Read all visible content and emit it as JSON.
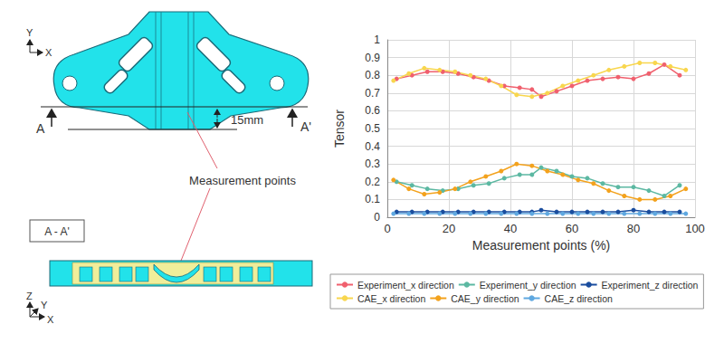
{
  "figure": {
    "axes_top": {
      "y": "Y",
      "x": "X"
    },
    "section_marks": {
      "left": "A",
      "right": "A'"
    },
    "dimension": "15mm",
    "callout": "Measurement points",
    "section_title": "A - A'",
    "axes_bottom": {
      "z": "Z",
      "y": "Y",
      "x": "X"
    }
  },
  "chart_data": {
    "type": "line",
    "xlabel": "Measurement points (%)",
    "ylabel": "Tensor",
    "xlim": [
      0,
      100
    ],
    "xticks": [
      0,
      20,
      40,
      60,
      80,
      100
    ],
    "ylim": [
      0,
      1
    ],
    "yticks": [
      0,
      0.1,
      0.2,
      0.3,
      0.4,
      0.5,
      0.6,
      0.7,
      0.8,
      0.9,
      1
    ],
    "grid": true,
    "legend": "bottom",
    "marker": "circle",
    "series": [
      {
        "name": "Experiment_x direction",
        "color": "#f0606e",
        "x": [
          3,
          8,
          13,
          18,
          23,
          28,
          33,
          38,
          43,
          47,
          50,
          55,
          60,
          65,
          70,
          75,
          80,
          85,
          90,
          95
        ],
        "values": [
          0.78,
          0.8,
          0.82,
          0.82,
          0.81,
          0.79,
          0.77,
          0.74,
          0.73,
          0.72,
          0.68,
          0.71,
          0.74,
          0.77,
          0.78,
          0.79,
          0.78,
          0.81,
          0.86,
          0.8
        ]
      },
      {
        "name": "Experiment_y direction",
        "color": "#5cb8a2",
        "x": [
          3,
          8,
          13,
          18,
          23,
          28,
          33,
          38,
          43,
          47,
          50,
          55,
          60,
          65,
          70,
          75,
          80,
          85,
          90,
          95
        ],
        "values": [
          0.2,
          0.18,
          0.16,
          0.15,
          0.16,
          0.18,
          0.19,
          0.22,
          0.24,
          0.24,
          0.28,
          0.26,
          0.23,
          0.22,
          0.19,
          0.17,
          0.17,
          0.15,
          0.12,
          0.18
        ]
      },
      {
        "name": "Experiment_z direction",
        "color": "#1a4d9e",
        "x": [
          3,
          8,
          13,
          18,
          23,
          28,
          33,
          38,
          43,
          47,
          50,
          55,
          60,
          65,
          70,
          75,
          80,
          85,
          90,
          95
        ],
        "values": [
          0.03,
          0.03,
          0.03,
          0.03,
          0.03,
          0.03,
          0.03,
          0.03,
          0.03,
          0.03,
          0.04,
          0.03,
          0.03,
          0.03,
          0.03,
          0.03,
          0.04,
          0.03,
          0.03,
          0.03
        ]
      },
      {
        "name": "CAE_x direction",
        "color": "#f8d64e",
        "x": [
          2,
          7,
          12,
          17,
          22,
          27,
          32,
          37,
          42,
          47,
          52,
          57,
          62,
          67,
          72,
          77,
          82,
          87,
          92,
          97
        ],
        "values": [
          0.77,
          0.81,
          0.84,
          0.83,
          0.82,
          0.8,
          0.78,
          0.74,
          0.69,
          0.68,
          0.7,
          0.74,
          0.77,
          0.8,
          0.83,
          0.85,
          0.87,
          0.87,
          0.85,
          0.83
        ]
      },
      {
        "name": "CAE_y direction",
        "color": "#f3a21d",
        "x": [
          2,
          7,
          12,
          17,
          22,
          27,
          32,
          37,
          42,
          47,
          52,
          57,
          62,
          67,
          72,
          77,
          82,
          87,
          92,
          97
        ],
        "values": [
          0.21,
          0.16,
          0.13,
          0.14,
          0.16,
          0.2,
          0.23,
          0.26,
          0.3,
          0.29,
          0.26,
          0.24,
          0.21,
          0.19,
          0.15,
          0.12,
          0.1,
          0.1,
          0.12,
          0.16
        ]
      },
      {
        "name": "CAE_z direction",
        "color": "#5fa8e0",
        "x": [
          2,
          7,
          12,
          17,
          22,
          27,
          32,
          37,
          42,
          47,
          52,
          57,
          62,
          67,
          72,
          77,
          82,
          87,
          92,
          97
        ],
        "values": [
          0.02,
          0.02,
          0.02,
          0.02,
          0.02,
          0.02,
          0.02,
          0.02,
          0.02,
          0.02,
          0.02,
          0.02,
          0.02,
          0.02,
          0.02,
          0.02,
          0.02,
          0.02,
          0.02,
          0.02
        ]
      }
    ]
  }
}
